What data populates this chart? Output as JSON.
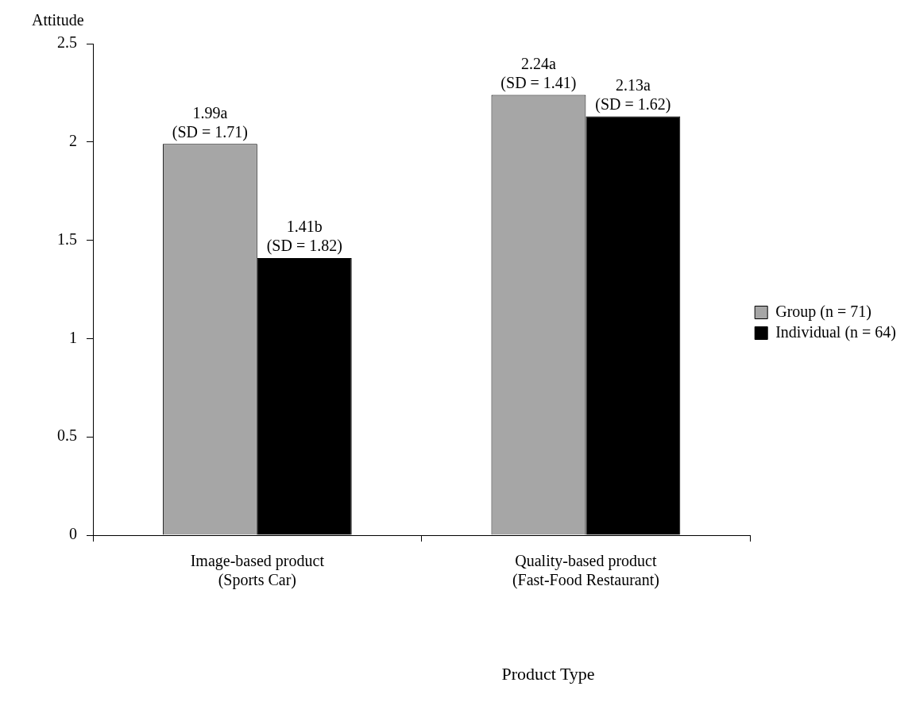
{
  "chart_data": {
    "type": "bar",
    "ylabel": "Attitude",
    "xlabel": "Product Type",
    "categories": [
      "Image-based product\n(Sports Car)",
      "Quality-based product\n(Fast-Food Restaurant)"
    ],
    "series": [
      {
        "name": "Group (n = 71)",
        "color": "#a6a6a6",
        "values": [
          1.99,
          2.24
        ],
        "value_labels": [
          "1.99a",
          "2.24a"
        ]
      },
      {
        "name": "Individual (n = 64)",
        "color": "#000000",
        "values": [
          1.41,
          2.13
        ],
        "value_labels": [
          "1.41b",
          "2.13a"
        ]
      }
    ],
    "annotations": [
      {
        "text": "(SD = 1.71)",
        "x": "Image-based product\n(Sports Car)",
        "y": 1.99
      },
      {
        "text": "(SD = 1.82)",
        "x": "Image-based product\n(Sports Car)",
        "y": 1.41
      },
      {
        "text": "(SD = 1.41)",
        "x": "Quality-based product\n(Fast-Food Restaurant)",
        "y": 2.24
      },
      {
        "text": "(SD = 1.62)",
        "x": "Quality-based product\n(Fast-Food Restaurant)",
        "y": 2.13
      }
    ],
    "ylim": [
      0,
      2.5
    ],
    "yticks": [
      0,
      0.5,
      1,
      1.5,
      2,
      2.5
    ],
    "grid": false,
    "legend": "right"
  }
}
